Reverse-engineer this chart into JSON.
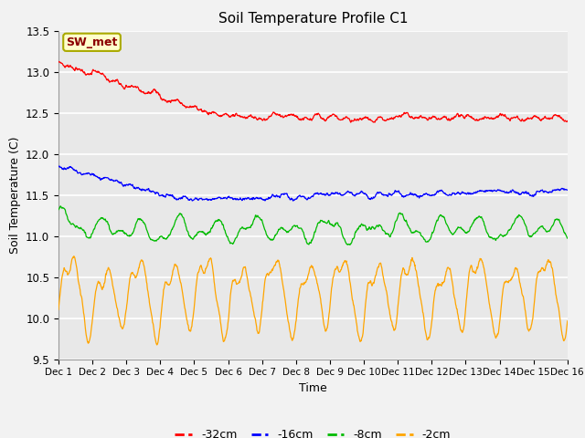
{
  "title": "Soil Temperature Profile C1",
  "xlabel": "Time",
  "ylabel": "Soil Temperature (C)",
  "ylim": [
    9.5,
    13.5
  ],
  "xlim": [
    0,
    15
  ],
  "xtick_labels": [
    "Dec 1",
    "Dec 2",
    "Dec 3",
    "Dec 4",
    "Dec 5",
    "Dec 6",
    "Dec 7",
    "Dec 8",
    "Dec 9",
    "Dec 10",
    "Dec 11",
    "Dec 12",
    "Dec 13",
    "Dec 14",
    "Dec 15",
    "Dec 16"
  ],
  "ytick_values": [
    9.5,
    10.0,
    10.5,
    11.0,
    11.5,
    12.0,
    12.5,
    13.0,
    13.5
  ],
  "series_colors": {
    "-32cm": "#FF0000",
    "-16cm": "#0000FF",
    "-8cm": "#00BB00",
    "-2cm": "#FFA500"
  },
  "series_labels": [
    "-32cm",
    "-16cm",
    "-8cm",
    "-2cm"
  ],
  "legend_label": "SW_met",
  "legend_bg": "#FFFFCC",
  "legend_border": "#AAAA00",
  "axes_bg": "#E8E8E8",
  "fig_bg": "#F2F2F2",
  "grid_color": "#FFFFFF",
  "n_points": 1440,
  "seed": 99
}
